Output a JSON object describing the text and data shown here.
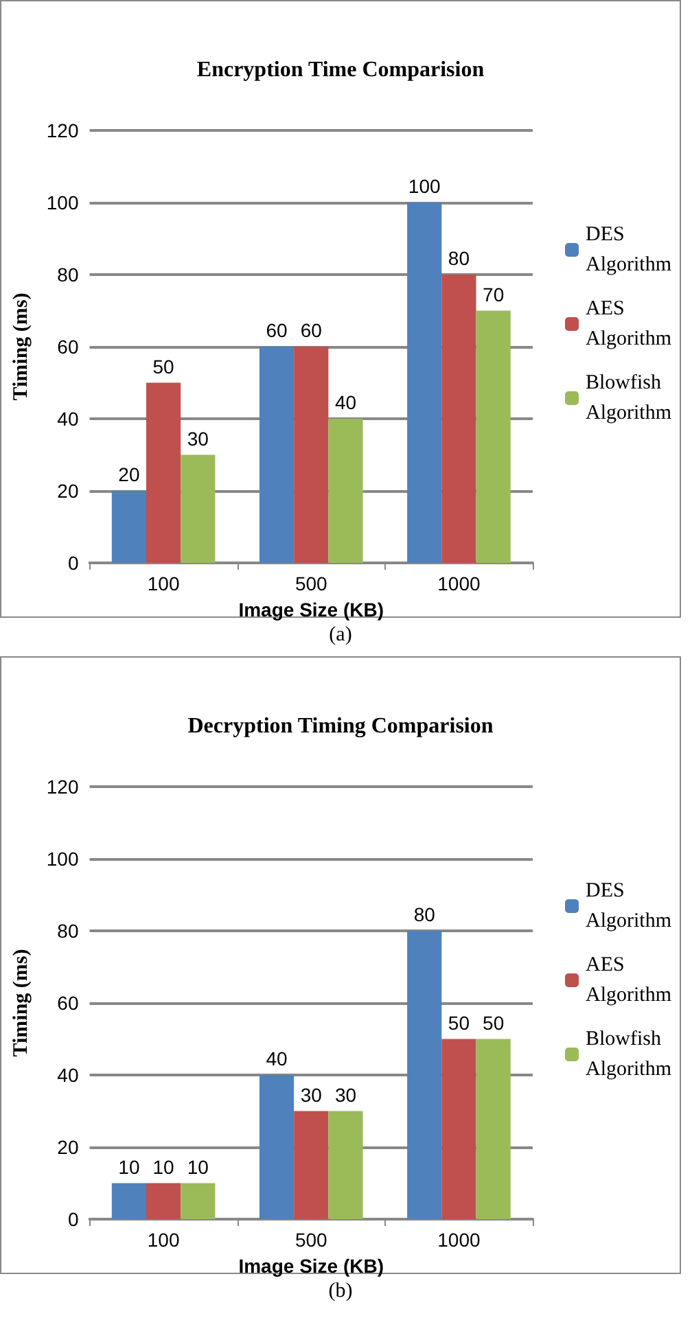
{
  "chart_data": [
    {
      "type": "bar",
      "title": "Encryption Time Comparision",
      "xlabel": "Image Size (KB)",
      "ylabel": "Timing (ms)",
      "categories": [
        "100",
        "500",
        "1000"
      ],
      "series": [
        {
          "name": "DES Algorithm",
          "color": "#4f81bd",
          "values": [
            20,
            60,
            100
          ]
        },
        {
          "name": "AES Algorithm",
          "color": "#c0504d",
          "values": [
            50,
            60,
            80
          ]
        },
        {
          "name": "Blowfish Algorithm",
          "color": "#9bbb59",
          "values": [
            30,
            40,
            70
          ]
        }
      ],
      "ylim": [
        0,
        120
      ],
      "yticks": [
        0,
        20,
        40,
        60,
        80,
        100,
        120
      ],
      "grid": "y",
      "legend": "right",
      "data_labels": true,
      "annotations": [
        "(a)"
      ]
    },
    {
      "type": "bar",
      "title": "Decryption Timing Comparision",
      "xlabel": "Image Size (KB)",
      "ylabel": "Timing (ms)",
      "categories": [
        "100",
        "500",
        "1000"
      ],
      "series": [
        {
          "name": "DES Algorithm",
          "color": "#4f81bd",
          "values": [
            10,
            40,
            80
          ]
        },
        {
          "name": "AES Algorithm",
          "color": "#c0504d",
          "values": [
            10,
            30,
            50
          ]
        },
        {
          "name": "Blowfish Algorithm",
          "color": "#9bbb59",
          "values": [
            10,
            30,
            50
          ]
        }
      ],
      "ylim": [
        0,
        120
      ],
      "yticks": [
        0,
        20,
        40,
        60,
        80,
        100,
        120
      ],
      "grid": "y",
      "legend": "right",
      "data_labels": true,
      "annotations": [
        "(b)"
      ]
    }
  ]
}
